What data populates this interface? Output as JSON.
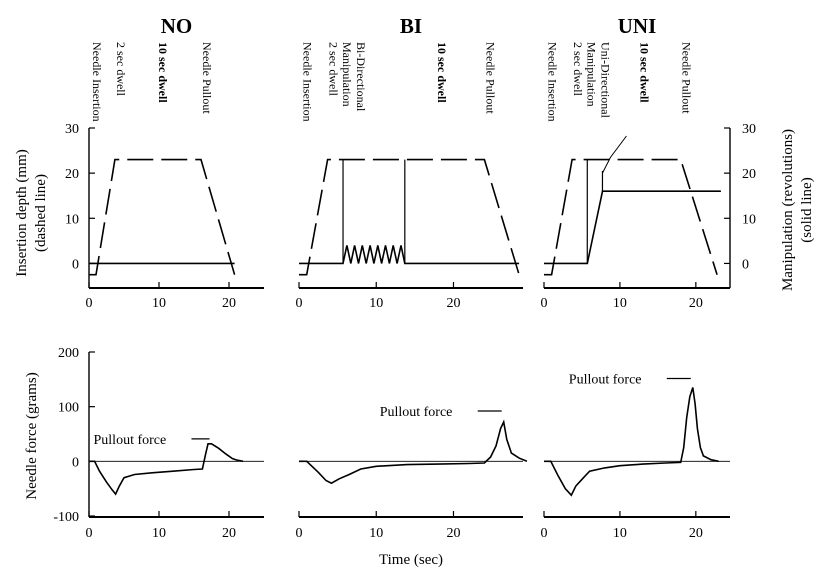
{
  "chart_data": [
    {
      "type": "line",
      "title": "NO",
      "ylabel": "Insertion depth (mm) (dashed line)",
      "xlim": [
        0,
        25
      ],
      "ylim": [
        -5,
        30
      ],
      "x_ticks": [
        "0",
        "10",
        "20"
      ],
      "y_ticks": [
        "0",
        "10",
        "20",
        "30"
      ],
      "series": [
        {
          "style": "dashed",
          "x": [
            0,
            1,
            3.7,
            16,
            20.8
          ],
          "y": [
            -2.5,
            -2.5,
            23,
            23,
            -2.5
          ]
        },
        {
          "style": "solid",
          "x": [
            0,
            20.8
          ],
          "y": [
            0,
            0
          ]
        }
      ],
      "annotations": [
        {
          "text": "Needle Insertion",
          "x": 1
        },
        {
          "text": "2 sec dwell",
          "x": 3.7
        },
        {
          "text": "10 sec dwell",
          "x": 10
        },
        {
          "text": "Needle Pullout",
          "x": 16
        }
      ]
    },
    {
      "type": "line",
      "title": "BI",
      "xlim": [
        0,
        29
      ],
      "ylim": [
        -5,
        30
      ],
      "x_ticks": [
        "0",
        "10",
        "20"
      ],
      "series": [
        {
          "style": "dashed",
          "x": [
            0,
            1,
            3.7,
            24,
            28.5
          ],
          "y": [
            -2.5,
            -2.5,
            23,
            23,
            -2.5
          ]
        },
        {
          "style": "solid",
          "x": [
            0,
            5.7,
            6.2,
            6.7,
            7.2,
            7.7,
            8.2,
            8.7,
            9.2,
            9.7,
            10.2,
            10.7,
            11.2,
            11.7,
            12.2,
            12.7,
            13.2,
            13.7,
            28.5
          ],
          "y": [
            0,
            0,
            4,
            0,
            4,
            0,
            4,
            0,
            4,
            0,
            4,
            0,
            4,
            0,
            4,
            0,
            4,
            0,
            0
          ]
        }
      ],
      "annotations": [
        {
          "text": "Needle Insertion",
          "x": 1
        },
        {
          "text": "2 sec dwell",
          "x": 3.7
        },
        {
          "text": "Bi-Directional Manipulation",
          "x": 5.7
        },
        {
          "text": "10 sec dwell",
          "x": 18
        },
        {
          "text": "Needle Pullout",
          "x": 24
        }
      ]
    },
    {
      "type": "line",
      "title": "UNI",
      "ylabel": "Manipulation (revolutions) (solid line)",
      "xlim": [
        0,
        24.5
      ],
      "ylim": [
        -5,
        30
      ],
      "x_ticks": [
        "0",
        "10",
        "20"
      ],
      "y_ticks": [
        "0",
        "10",
        "20",
        "30"
      ],
      "series": [
        {
          "style": "dashed",
          "x": [
            0,
            1,
            3.7,
            18,
            22.8
          ],
          "y": [
            -2.5,
            -2.5,
            23,
            23,
            -2.5
          ]
        },
        {
          "style": "solid",
          "x": [
            0,
            5.7,
            7.7,
            23.3
          ],
          "y": [
            0,
            0,
            16,
            16
          ]
        }
      ],
      "annotations": [
        {
          "text": "Needle Insertion",
          "x": 1
        },
        {
          "text": "2 sec dwell",
          "x": 3.7
        },
        {
          "text": "Uni-Directional Manipulation",
          "x": 5.7
        },
        {
          "text": "10 sec dwell",
          "x": 12.7
        },
        {
          "text": "Needle Pullout",
          "x": 18
        }
      ]
    },
    {
      "type": "line",
      "ylabel": "Needle force (grams)",
      "xlim": [
        0,
        25
      ],
      "ylim": [
        -100,
        200
      ],
      "x_ticks": [
        "0",
        "10",
        "20"
      ],
      "y_ticks": [
        "-100",
        "0",
        "100",
        "200"
      ],
      "series": [
        {
          "style": "solid",
          "x": [
            0,
            0.8,
            1.5,
            2.5,
            3.3,
            3.8,
            4.3,
            5,
            6.5,
            9,
            12,
            15,
            16.2,
            16.6,
            17,
            17.5,
            18.5,
            19.5,
            20.5,
            21.2,
            22
          ],
          "y": [
            0,
            0,
            -18,
            -38,
            -52,
            -60,
            -46,
            -30,
            -24,
            -21,
            -18,
            -15,
            -14,
            10,
            32,
            32,
            24,
            14,
            5,
            2,
            0
          ]
        }
      ],
      "annotations": [
        {
          "text": "Pullout force",
          "x": 17.5,
          "y": 32
        }
      ]
    },
    {
      "type": "line",
      "xlim": [
        0,
        29
      ],
      "ylim": [
        -100,
        200
      ],
      "x_ticks": [
        "0",
        "10",
        "20"
      ],
      "series": [
        {
          "style": "solid",
          "x": [
            0,
            1,
            2.5,
            3.5,
            4.2,
            5.2,
            6.5,
            8,
            10,
            14,
            18,
            22,
            24,
            24.8,
            25.5,
            26.1,
            26.5,
            26.9,
            27.5,
            28.5,
            29.5
          ],
          "y": [
            0,
            0,
            -20,
            -35,
            -40,
            -32,
            -24,
            -14,
            -9,
            -6,
            -5,
            -4,
            -3,
            8,
            28,
            60,
            72,
            40,
            15,
            6,
            0
          ]
        }
      ],
      "annotations": [
        {
          "text": "Pullout force",
          "x": 26.5,
          "y": 72
        }
      ]
    },
    {
      "type": "line",
      "xlim": [
        0,
        24.5
      ],
      "ylim": [
        -100,
        200
      ],
      "x_ticks": [
        "0",
        "10",
        "20"
      ],
      "series": [
        {
          "style": "solid",
          "x": [
            0,
            0.9,
            1.8,
            2.8,
            3.6,
            4.2,
            5.2,
            6,
            8,
            10,
            13,
            16,
            18,
            18.4,
            18.8,
            19.2,
            19.6,
            19.9,
            20.2,
            20.6,
            21,
            22,
            23
          ],
          "y": [
            0,
            0,
            -25,
            -50,
            -62,
            -45,
            -30,
            -18,
            -12,
            -8,
            -5,
            -3,
            -2,
            25,
            80,
            118,
            135,
            105,
            60,
            25,
            10,
            3,
            0
          ]
        }
      ],
      "annotations": [
        {
          "text": "Pullout force",
          "x": 19.6,
          "y": 135
        }
      ]
    }
  ],
  "shared": {
    "xlabel": "Time (sec)"
  }
}
